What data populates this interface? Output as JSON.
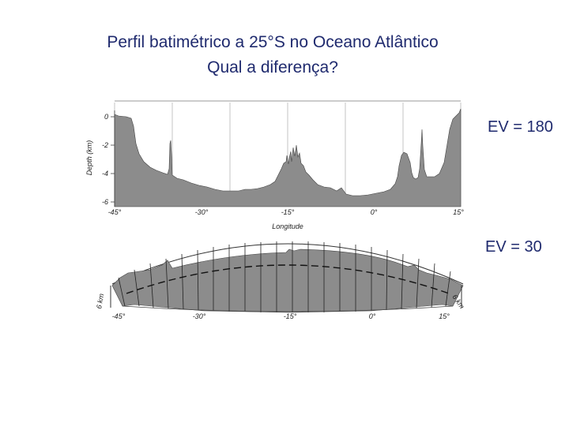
{
  "title_line1": "Perfil batimétrico a 25°S no Oceano Atlântico",
  "title_line2": "Qual a diferença?",
  "ev_top": "EV = 180",
  "ev_bottom": "EV = 30",
  "top_profile": {
    "ylabel": "Depth (km)",
    "xlabel": "Longitude",
    "y_ticks": [
      "0",
      "-2",
      "-4",
      "-6"
    ],
    "x_ticks": [
      "-45°",
      "-30°",
      "-15°",
      "0°",
      "15°"
    ]
  },
  "bottom_profile": {
    "left_scale": "6 km",
    "right_scale": "6 km",
    "x_ticks": [
      "-45°",
      "-30°",
      "-15°",
      "0°",
      "15°"
    ]
  },
  "colors": {
    "text": "#1f2a6e",
    "fill": "#8c8c8c"
  }
}
